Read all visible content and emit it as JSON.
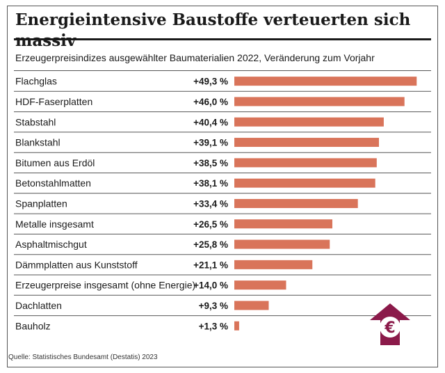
{
  "title": "Energieintensive Baustoffe verteuerten sich massiv",
  "subtitle": "Erzeugerpreisindizes ausgewählter Baumaterialien 2022, Veränderung zum Vorjahr",
  "source": "Quelle: Statistisches Bundesamt (Destatis) 2023",
  "colors": {
    "bar": "#d9745a",
    "icon": "#8b1a4a"
  },
  "icon": "euro-up-arrow-icon",
  "chart_data": {
    "type": "bar",
    "orientation": "horizontal",
    "unit": "%",
    "categories": [
      "Flachglas",
      "HDF-Faserplatten",
      "Stabstahl",
      "Blankstahl",
      "Bitumen aus Erdöl",
      "Betonstahlmatten",
      "Spanplatten",
      "Metalle insgesamt",
      "Asphaltmischgut",
      "Dämmplatten aus Kunststoff",
      "Erzeugerpreise insgesamt (ohne Energie)",
      "Dachlatten",
      "Bauholz"
    ],
    "values": [
      49.3,
      46.0,
      40.4,
      39.1,
      38.5,
      38.1,
      33.4,
      26.5,
      25.8,
      21.1,
      14.0,
      9.3,
      1.3
    ],
    "value_labels": [
      "+49,3 %",
      "+46,0 %",
      "+40,4 %",
      "+39,1 %",
      "+38,5 %",
      "+38,1 %",
      "+33,4 %",
      "+26,5 %",
      "+25,8 %",
      "+21,1 %",
      "+14,0 %",
      "+9,3 %",
      "+1,3 %"
    ],
    "xlim": [
      0,
      50
    ],
    "grid": false,
    "legend": "none"
  }
}
